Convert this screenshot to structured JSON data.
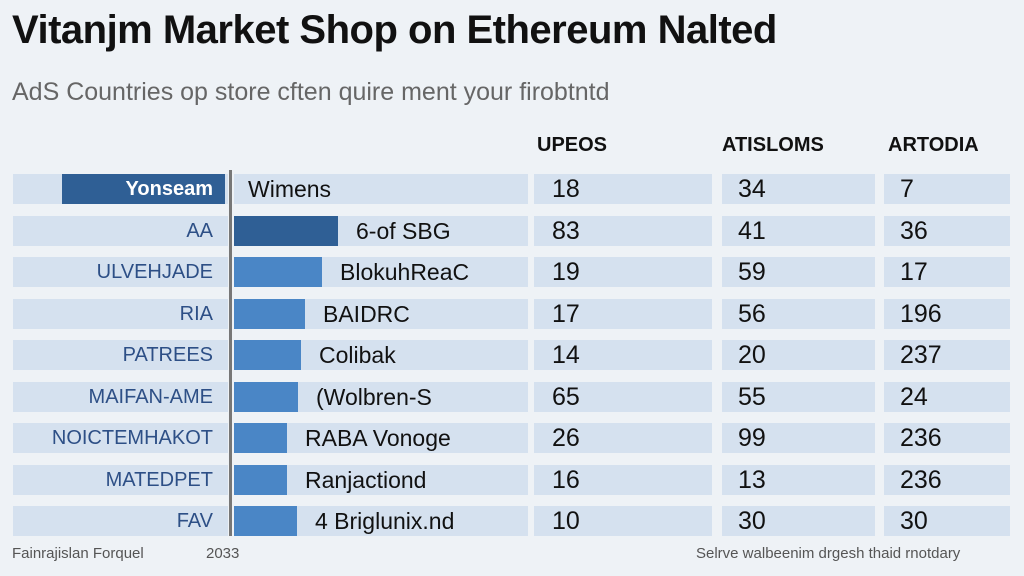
{
  "title": "Vitanjm Market Shop on Ethereum Nalted",
  "subtitle": "AdS Countries op store cften quire ment your firobtntd",
  "chart_data": {
    "type": "table",
    "columns": [
      "UPEOS",
      "ATISLOMS",
      "ARTODIA"
    ],
    "header_label": "Yonseam",
    "rows": [
      {
        "label": "",
        "name": "Wimens",
        "bar": 0,
        "values": [
          18,
          34,
          7
        ]
      },
      {
        "label": "AA",
        "name": "6-of SBG",
        "bar": 1.0,
        "values": [
          83,
          41,
          36
        ]
      },
      {
        "label": "ULVEHJADE",
        "name": "BlokuhReaC",
        "bar": 0.85,
        "values": [
          19,
          59,
          17
        ]
      },
      {
        "label": "RIA",
        "name": "BAIDRC",
        "bar": 0.68,
        "values": [
          17,
          56,
          196
        ]
      },
      {
        "label": "PATREES",
        "name": "Colibak",
        "bar": 0.64,
        "values": [
          14,
          20,
          237
        ]
      },
      {
        "label": "MAIFAN-AME",
        "name": "(Wolbren-S",
        "bar": 0.62,
        "values": [
          65,
          55,
          24
        ]
      },
      {
        "label": "NOICTEMHAKOT",
        "name": "RABA Vonoge",
        "bar": 0.51,
        "values": [
          26,
          99,
          236
        ]
      },
      {
        "label": "MATEDPET",
        "name": "Ranjactiond",
        "bar": 0.51,
        "values": [
          16,
          13,
          236
        ]
      },
      {
        "label": "FAV",
        "name": "4 Briglunix.nd",
        "bar": 0.61,
        "values": [
          10,
          30,
          30
        ]
      }
    ]
  },
  "footer": {
    "source": "Fainrajislan Forquel",
    "year": "2033",
    "note": "Selrve walbeenim drgesh thaid rnotdary"
  }
}
